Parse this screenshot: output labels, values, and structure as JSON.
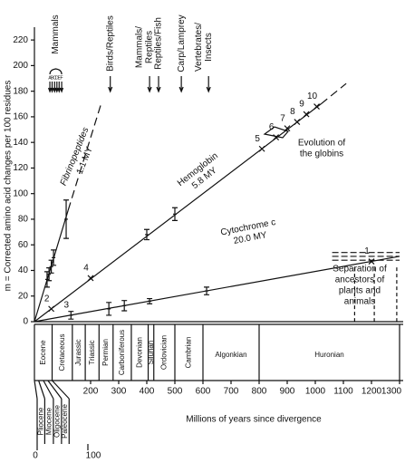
{
  "chart_data": {
    "type": "line",
    "ylabel": "m = Corrected amino acid changes per 100 residues",
    "xlabel": "Millions of years since divergence",
    "xlim": [
      0,
      1300
    ],
    "ylim": [
      0,
      230
    ],
    "xticks": [
      200,
      300,
      400,
      500,
      600,
      700,
      800,
      900,
      1000,
      1100,
      1200,
      1300
    ],
    "yticks": [
      0,
      20,
      40,
      60,
      80,
      100,
      120,
      140,
      160,
      180,
      200,
      220
    ],
    "series": [
      {
        "name": "Fibrinopeptides",
        "rate": "1.1 MY",
        "color": "#111111",
        "solid": {
          "x": [
            0,
            120
          ],
          "y": [
            0,
            87
          ]
        },
        "dashed": {
          "x": [
            120,
            240
          ],
          "y": [
            87,
            172
          ]
        },
        "x": [
          45,
          52,
          60,
          68,
          113
        ],
        "values": [
          33,
          37,
          43,
          50,
          80
        ],
        "errors": [
          6,
          5,
          5,
          6,
          15
        ],
        "point_labels": [
          null,
          null,
          null,
          null,
          null
        ]
      },
      {
        "name": "Hemoglobin",
        "rate": "5.8 MY",
        "color": "#111111",
        "solid": {
          "x": [
            0,
            1020
          ],
          "y": [
            0,
            170
          ]
        },
        "dashed": {
          "x": [
            1020,
            1110
          ],
          "y": [
            170,
            186
          ]
        },
        "x": [
          60,
          200,
          400,
          500,
          810,
          860,
          900,
          935,
          968,
          1005
        ],
        "values": [
          10,
          34,
          68,
          84,
          135,
          144,
          151,
          156,
          162,
          168
        ],
        "errors": [
          null,
          null,
          4,
          5,
          null,
          null,
          null,
          null,
          null,
          null
        ],
        "point_labels": [
          "2",
          "4",
          null,
          null,
          "5",
          "6",
          "7",
          "8",
          "9",
          "10"
        ]
      },
      {
        "name": "Cytochrome c",
        "rate": "20.0 MY",
        "color": "#111111",
        "solid": {
          "x": [
            0,
            1300
          ],
          "y": [
            0,
            51
          ]
        },
        "x": [
          130,
          265,
          320,
          410,
          613,
          1200
        ],
        "values": [
          5,
          10,
          12.5,
          16,
          24,
          47
        ],
        "errors": [
          3,
          5,
          4,
          2,
          3,
          null
        ],
        "point_labels": [
          "3",
          null,
          null,
          null,
          null,
          "1"
        ]
      }
    ],
    "mammals": {
      "label": "Mammals",
      "letters": [
        "A",
        "B",
        "C",
        "D",
        "E",
        "F"
      ],
      "x": [
        55,
        63,
        72,
        80,
        88,
        97
      ]
    },
    "divergences": [
      {
        "label": [
          "Birds/Reptiles"
        ],
        "x": 270
      },
      {
        "label": [
          "Mammals/",
          "Reptiles"
        ],
        "x": 410
      },
      {
        "label": [
          "Reptiles/Fish"
        ],
        "x": 442
      },
      {
        "label": [
          "Carp/Lamprey"
        ],
        "x": 523
      },
      {
        "label": [
          "Vertebrates/",
          "Insects"
        ],
        "x": 620
      }
    ],
    "globins_note": [
      "Evolution of",
      "the globins"
    ],
    "separation": {
      "label": [
        "Separation of",
        "ancestors of",
        "plants and",
        "animals"
      ],
      "x": [
        1140,
        1210,
        1290
      ],
      "y": [
        54,
        51,
        48
      ]
    },
    "periods": [
      {
        "name": "Eocene",
        "start": 0,
        "end": 63
      },
      {
        "name": "Cretaceous",
        "start": 63,
        "end": 135
      },
      {
        "name": "Jurassic",
        "start": 135,
        "end": 181
      },
      {
        "name": "Triassic",
        "start": 181,
        "end": 230
      },
      {
        "name": "Permian",
        "start": 230,
        "end": 280
      },
      {
        "name": "Carboniferous",
        "start": 280,
        "end": 345
      },
      {
        "name": "Devonian",
        "start": 345,
        "end": 405
      },
      {
        "name": "Silurian",
        "start": 405,
        "end": 425
      },
      {
        "name": "Ordovician",
        "start": 425,
        "end": 500
      },
      {
        "name": "Cambrian",
        "start": 500,
        "end": 600
      },
      {
        "name": "Algonkian",
        "start": 600,
        "end": 800
      },
      {
        "name": "Huronian",
        "start": 800,
        "end": 1300
      }
    ],
    "epochs": [
      {
        "name": "Pliocene",
        "start": 0,
        "end": 15
      },
      {
        "name": "Miocene",
        "start": 15,
        "end": 32
      },
      {
        "name": "Oligocene",
        "start": 32,
        "end": 48
      },
      {
        "name": "Paleocene",
        "start": 48,
        "end": 63
      }
    ],
    "epoch_ticks": [
      0,
      100
    ]
  }
}
